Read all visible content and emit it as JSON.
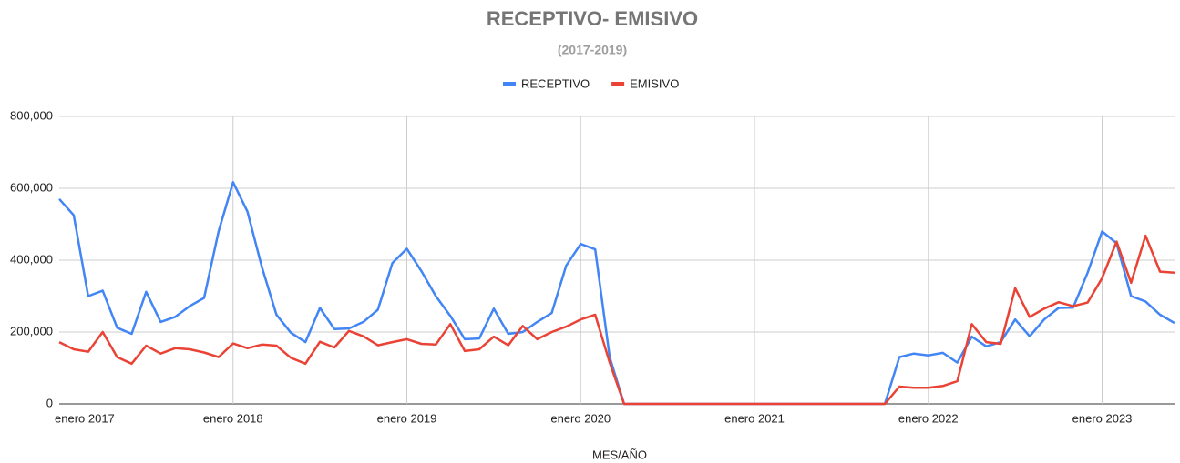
{
  "chart_data": {
    "type": "line",
    "title": "RECEPTIVO- EMISIVO",
    "subtitle": "(2017-2019)",
    "x_label": "MES/AÑO",
    "categories": [
      "enero 2017",
      null,
      null,
      null,
      null,
      null,
      null,
      null,
      null,
      null,
      null,
      null,
      "enero 2018",
      null,
      null,
      null,
      null,
      null,
      null,
      null,
      null,
      null,
      null,
      null,
      "enero 2019",
      null,
      null,
      null,
      null,
      null,
      null,
      null,
      null,
      null,
      null,
      null,
      "enero 2020",
      null,
      null,
      null,
      null,
      null,
      null,
      null,
      null,
      null,
      null,
      null,
      "enero 2021",
      null,
      null,
      null,
      null,
      null,
      null,
      null,
      null,
      null,
      null,
      null,
      "enero 2022",
      null,
      null,
      null,
      null,
      null,
      null,
      null,
      null,
      null,
      null,
      null,
      "enero 2023",
      null,
      null,
      null,
      null,
      null
    ],
    "series": [
      {
        "name": "RECEPTIVO",
        "color": "#4285f4",
        "values": [
          570000,
          525000,
          300000,
          315000,
          212000,
          195000,
          312000,
          228000,
          242000,
          272000,
          295000,
          480000,
          617000,
          535000,
          380000,
          248000,
          198000,
          172000,
          267000,
          208000,
          210000,
          228000,
          262000,
          392000,
          432000,
          370000,
          300000,
          245000,
          180000,
          182000,
          265000,
          195000,
          200000,
          228000,
          253000,
          385000,
          445000,
          430000,
          130000,
          0,
          0,
          0,
          0,
          0,
          0,
          0,
          0,
          0,
          0,
          0,
          0,
          0,
          0,
          0,
          0,
          0,
          0,
          0,
          130000,
          140000,
          135000,
          142000,
          115000,
          187000,
          160000,
          172000,
          235000,
          188000,
          235000,
          267000,
          268000,
          365000,
          480000,
          447000,
          300000,
          285000,
          248000,
          225000
        ]
      },
      {
        "name": "EMISIVO",
        "color": "#ea4335",
        "values": [
          172000,
          152000,
          145000,
          200000,
          130000,
          112000,
          162000,
          140000,
          155000,
          152000,
          143000,
          130000,
          168000,
          155000,
          165000,
          162000,
          128000,
          112000,
          173000,
          157000,
          203000,
          188000,
          163000,
          172000,
          180000,
          167000,
          165000,
          222000,
          147000,
          152000,
          187000,
          163000,
          217000,
          180000,
          200000,
          215000,
          235000,
          248000,
          115000,
          0,
          0,
          0,
          0,
          0,
          0,
          0,
          0,
          0,
          0,
          0,
          0,
          0,
          0,
          0,
          0,
          0,
          0,
          0,
          48000,
          45000,
          45000,
          50000,
          63000,
          222000,
          172000,
          167000,
          322000,
          242000,
          265000,
          283000,
          272000,
          282000,
          350000,
          452000,
          337000,
          468000,
          368000,
          365000
        ]
      }
    ],
    "ylim": [
      0,
      800000
    ],
    "yticks": [
      0,
      {
        "value": 200000,
        "label": "200,000"
      },
      {
        "value": 400000,
        "label": "400,000"
      },
      {
        "value": 600000,
        "label": "600,000"
      },
      {
        "value": 800000,
        "label": "800,000"
      }
    ],
    "grid": true,
    "legend": "top"
  }
}
